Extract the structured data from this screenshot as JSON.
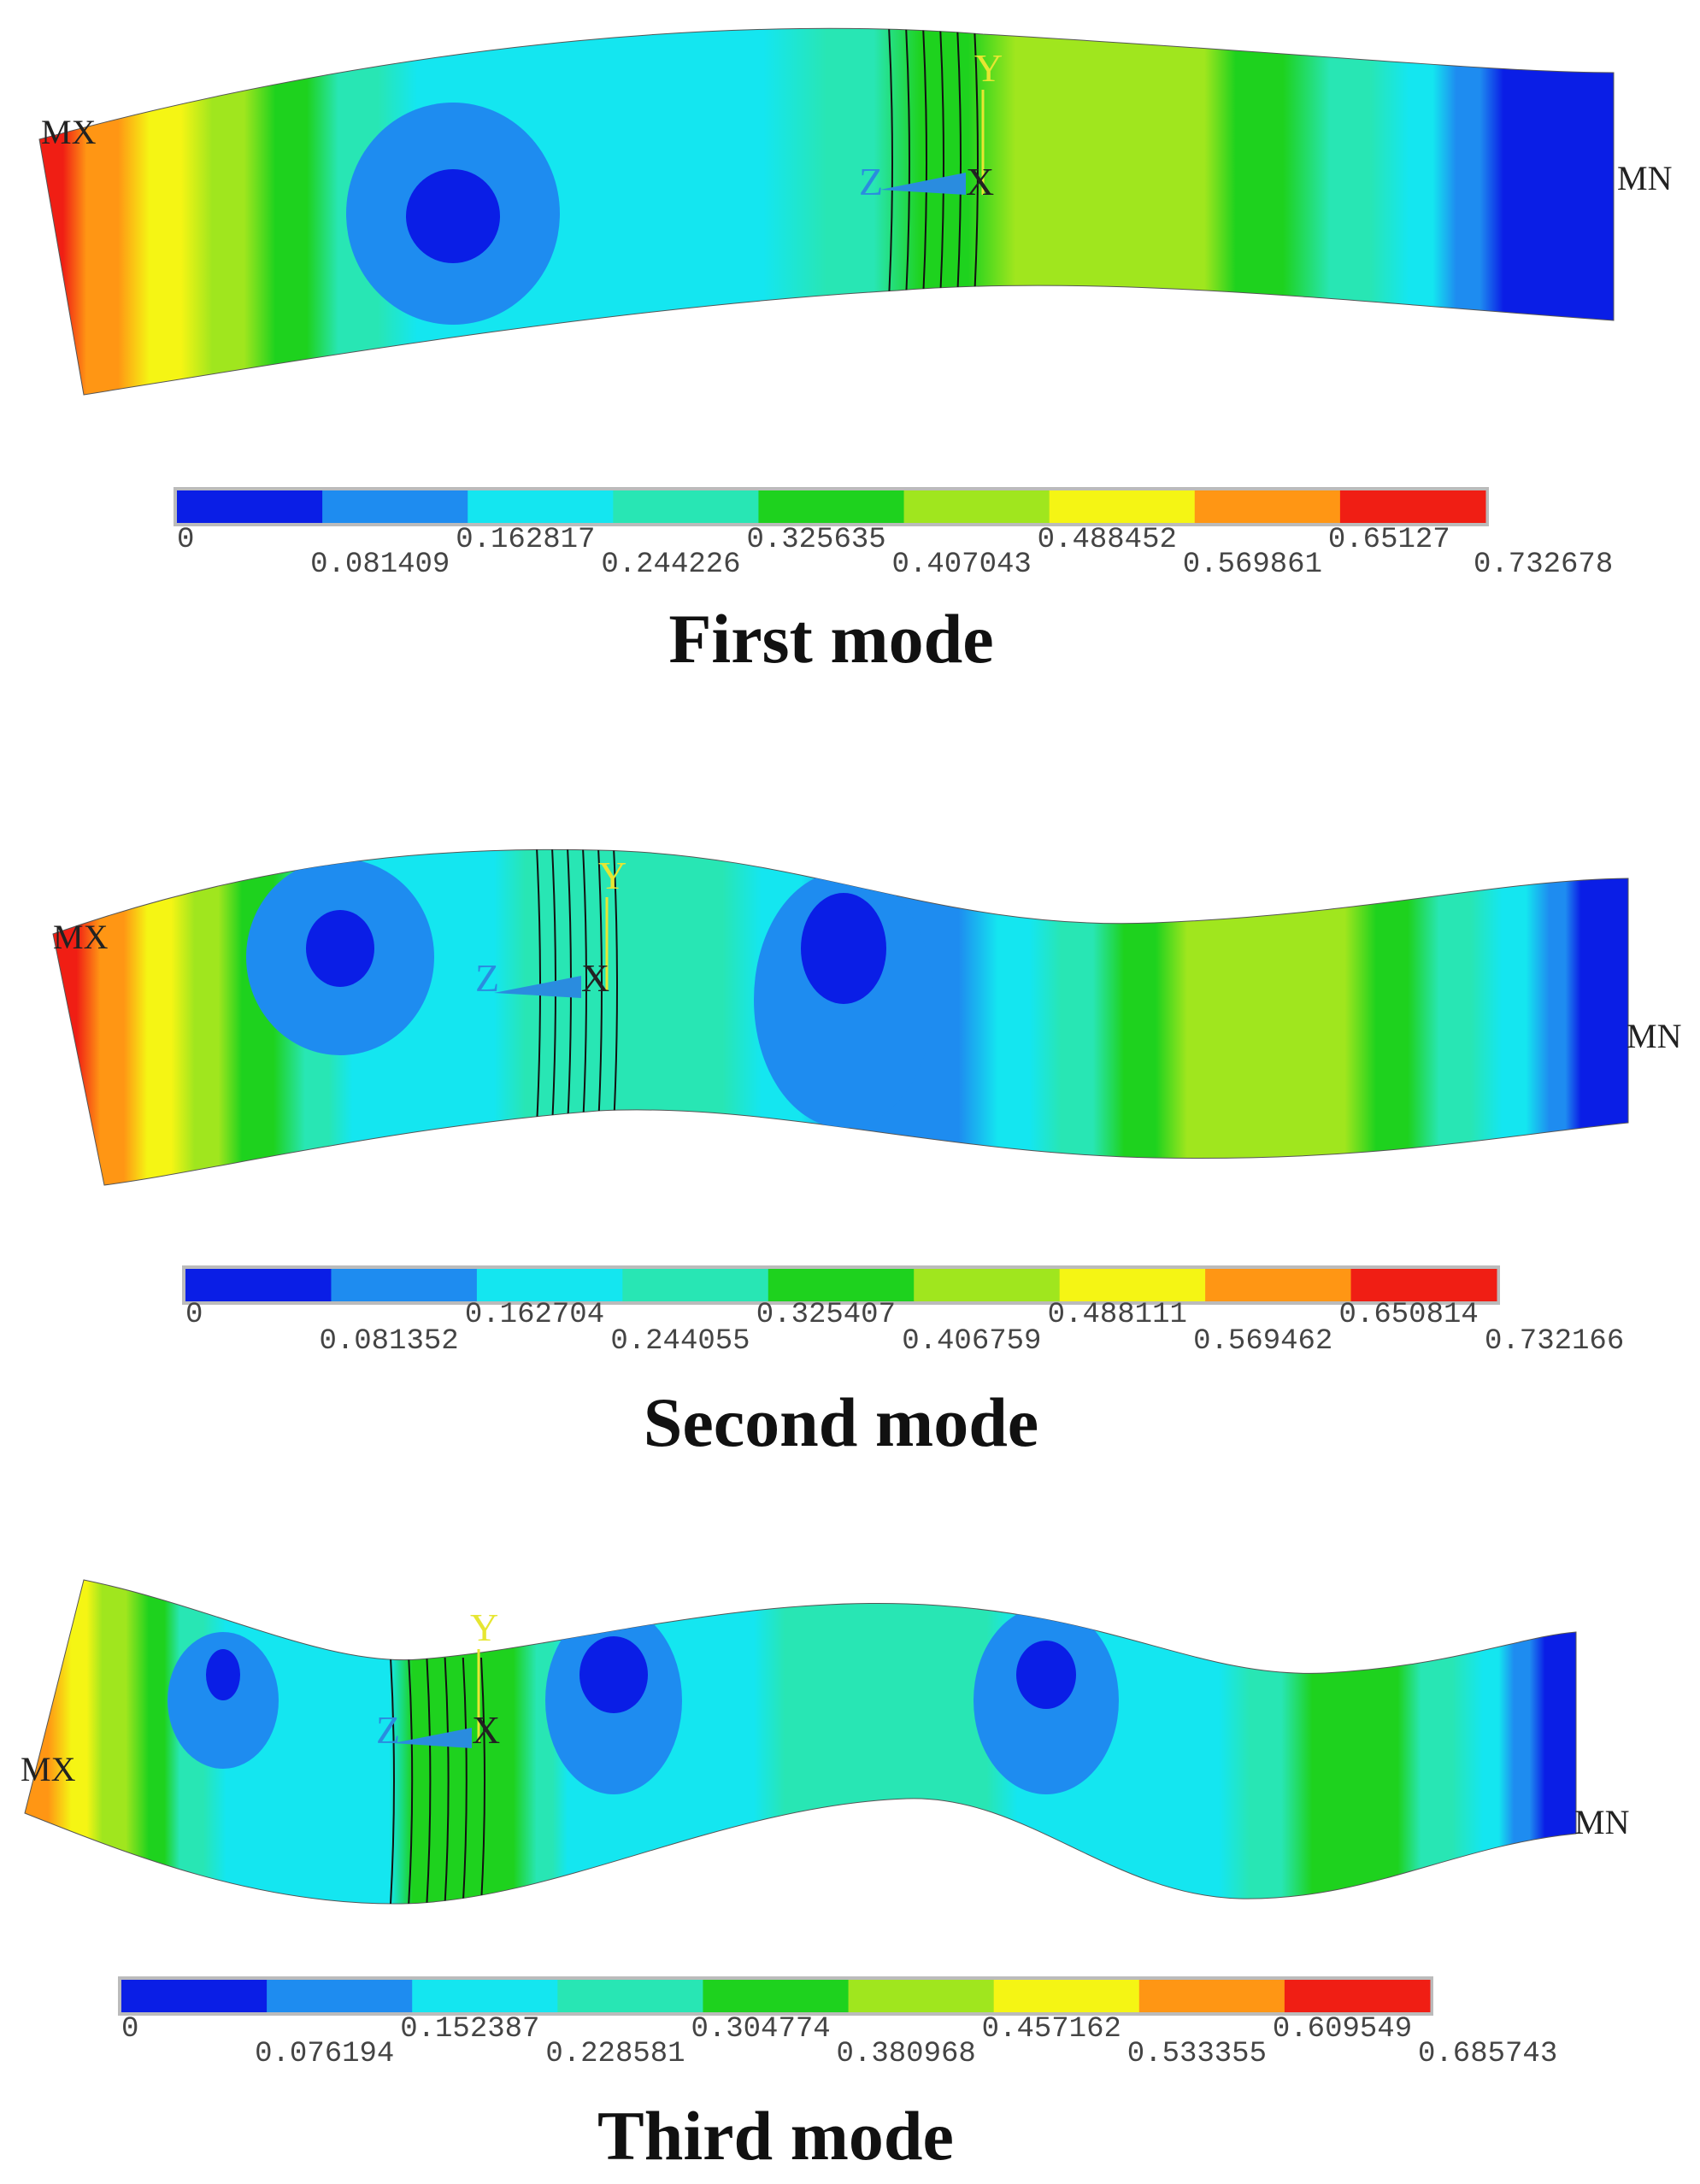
{
  "panels": [
    {
      "caption": "First mode",
      "max_label": "MX",
      "min_label": "MN",
      "triad": {
        "y": "Y",
        "z": "Z",
        "x": "X"
      },
      "legend": {
        "colors": [
          "#0a1ee6",
          "#1e8cf0",
          "#14e6f0",
          "#28e6b4",
          "#1ed21e",
          "#a0e61e",
          "#f5f514",
          "#ff9614",
          "#f01e14"
        ],
        "ticks": [
          0,
          0.081409,
          0.162817,
          0.244226,
          0.325635,
          0.407043,
          0.488452,
          0.569861,
          0.65127,
          0.732678
        ]
      }
    },
    {
      "caption": "Second mode",
      "max_label": "MX",
      "min_label": "MN",
      "triad": {
        "y": "Y",
        "z": "Z",
        "x": "X"
      },
      "legend": {
        "colors": [
          "#0a1ee6",
          "#1e8cf0",
          "#14e6f0",
          "#28e6b4",
          "#1ed21e",
          "#a0e61e",
          "#f5f514",
          "#ff9614",
          "#f01e14"
        ],
        "ticks": [
          0,
          0.081352,
          0.162704,
          0.244055,
          0.325407,
          0.406759,
          0.488111,
          0.569462,
          0.650814,
          0.732166
        ]
      }
    },
    {
      "caption": "Third mode",
      "max_label": "MX",
      "min_label": "MN",
      "triad": {
        "y": "Y",
        "z": "Z",
        "x": "X"
      },
      "legend": {
        "colors": [
          "#0a1ee6",
          "#1e8cf0",
          "#14e6f0",
          "#28e6b4",
          "#1ed21e",
          "#a0e61e",
          "#f5f514",
          "#ff9614",
          "#f01e14"
        ],
        "ticks": [
          0,
          0.076194,
          0.152387,
          0.228581,
          0.304774,
          0.380968,
          0.457162,
          0.533355,
          0.609549,
          0.685743
        ]
      }
    }
  ]
}
